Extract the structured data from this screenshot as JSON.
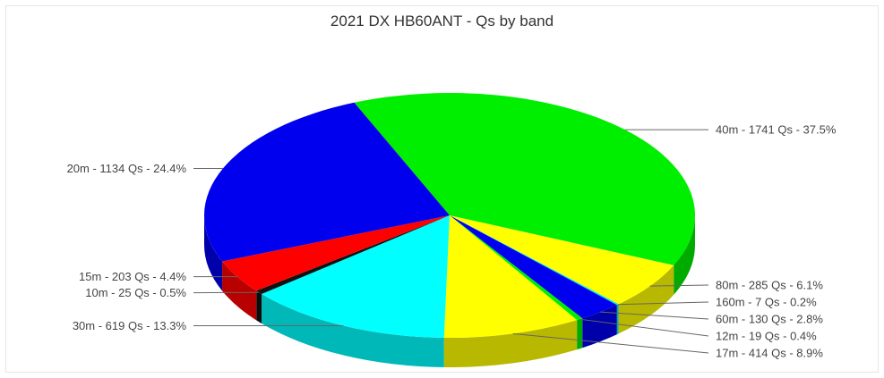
{
  "chart_data": {
    "type": "pie",
    "title": "2021 DX HB60ANT - Qs by band",
    "slices": [
      {
        "label": "40m - 1741 Qs - 37.5%",
        "band": "40m",
        "qs": 1741,
        "percent": 37.5,
        "color": "#00ee00"
      },
      {
        "label": "80m - 285 Qs - 6.1%",
        "band": "80m",
        "qs": 285,
        "percent": 6.1,
        "color": "#ffff00"
      },
      {
        "label": "160m - 7 Qs - 0.2%",
        "band": "160m",
        "qs": 7,
        "percent": 0.2,
        "color": "#00eeee"
      },
      {
        "label": "60m - 130 Qs - 2.8%",
        "band": "60m",
        "qs": 130,
        "percent": 2.8,
        "color": "#0000ee"
      },
      {
        "label": "12m - 19 Qs - 0.4%",
        "band": "12m",
        "qs": 19,
        "percent": 0.4,
        "color": "#00ee00"
      },
      {
        "label": "17m - 414 Qs - 8.9%",
        "band": "17m",
        "qs": 414,
        "percent": 8.9,
        "color": "#ffff00"
      },
      {
        "label": "30m - 619 Qs - 13.3%",
        "band": "30m",
        "qs": 619,
        "percent": 13.3,
        "color": "#00ffff"
      },
      {
        "label": "10m - 25 Qs - 0.5%",
        "band": "10m",
        "qs": 25,
        "percent": 0.5,
        "color": "#111111"
      },
      {
        "label": "15m - 203 Qs - 4.4%",
        "band": "15m",
        "qs": 203,
        "percent": 4.4,
        "color": "#ff0000"
      },
      {
        "label": "20m - 1134 Qs - 24.4%",
        "band": "20m",
        "qs": 1134,
        "percent": 24.4,
        "color": "#0000ee"
      }
    ]
  }
}
